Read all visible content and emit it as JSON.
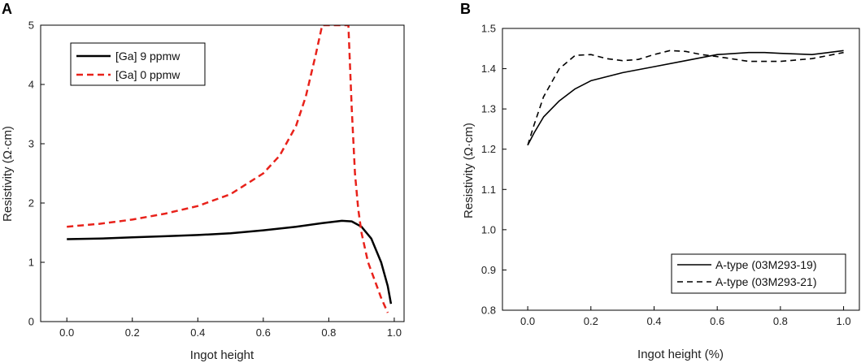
{
  "chart_data": [
    {
      "panel_label": "A",
      "type": "line",
      "title": "",
      "xlabel": "Ingot height",
      "ylabel": "Resistivity (Ω·cm)",
      "xlim": [
        -0.08,
        1.03
      ],
      "ylim": [
        0,
        5
      ],
      "xticks": [
        0.0,
        0.2,
        0.4,
        0.6,
        0.8,
        1.0
      ],
      "xtick_labels": [
        "0.0",
        "0.2",
        "0.4",
        "0.6",
        "0.8",
        "1.0"
      ],
      "yticks": [
        0,
        1,
        2,
        3,
        4,
        5
      ],
      "ytick_labels": [
        "0",
        "1",
        "2",
        "3",
        "4",
        "5"
      ],
      "grid": false,
      "legend_position": "top-left",
      "series": [
        {
          "name": "[Ga] 9 ppmw",
          "color": "#000000",
          "dash": "solid",
          "x": [
            0.0,
            0.1,
            0.2,
            0.3,
            0.4,
            0.5,
            0.6,
            0.7,
            0.78,
            0.84,
            0.87,
            0.9,
            0.93,
            0.96,
            0.98,
            0.99
          ],
          "y": [
            1.39,
            1.4,
            1.42,
            1.44,
            1.46,
            1.49,
            1.54,
            1.6,
            1.66,
            1.7,
            1.69,
            1.6,
            1.4,
            1.0,
            0.6,
            0.3
          ]
        },
        {
          "name": "[Ga] 0 ppmw",
          "color": "#e8221b",
          "dash": "dashed",
          "x": [
            0.0,
            0.1,
            0.2,
            0.3,
            0.4,
            0.5,
            0.6,
            0.65,
            0.7,
            0.73,
            0.76,
            0.78,
            0.86,
            0.87,
            0.88,
            0.89,
            0.9,
            0.92,
            0.94,
            0.96,
            0.98
          ],
          "y": [
            1.6,
            1.65,
            1.72,
            1.82,
            1.95,
            2.15,
            2.5,
            2.8,
            3.3,
            3.8,
            4.5,
            5.0,
            5.0,
            3.6,
            2.5,
            1.9,
            1.5,
            1.0,
            0.7,
            0.4,
            0.15
          ]
        }
      ]
    },
    {
      "panel_label": "B",
      "type": "line",
      "title": "",
      "xlabel": "Ingot height (%)",
      "ylabel": "Resistivity (Ω·cm)",
      "xlim": [
        -0.08,
        1.05
      ],
      "ylim": [
        0.8,
        1.5
      ],
      "xticks": [
        0.0,
        0.2,
        0.4,
        0.6,
        0.8,
        1.0
      ],
      "xtick_labels": [
        "0.0",
        "0.2",
        "0.4",
        "0.6",
        "0.8",
        "1.0"
      ],
      "yticks": [
        0.8,
        0.9,
        1.0,
        1.1,
        1.2,
        1.3,
        1.4,
        1.5
      ],
      "ytick_labels": [
        "0.8",
        "0.9",
        "1.0",
        "1.1",
        "1.2",
        "1.3",
        "1.4",
        "1.5"
      ],
      "grid": false,
      "legend_position": "bottom-right",
      "series": [
        {
          "name": "A-type (03M293-19)",
          "color": "#000000",
          "dash": "solid",
          "x": [
            0.0,
            0.02,
            0.05,
            0.1,
            0.15,
            0.2,
            0.3,
            0.4,
            0.5,
            0.6,
            0.7,
            0.75,
            0.8,
            0.9,
            1.0
          ],
          "y": [
            1.21,
            1.24,
            1.28,
            1.32,
            1.35,
            1.37,
            1.39,
            1.405,
            1.42,
            1.435,
            1.44,
            1.44,
            1.438,
            1.435,
            1.445
          ]
        },
        {
          "name": "A-type (03M293-21)",
          "color": "#000000",
          "dash": "dashed",
          "x": [
            0.0,
            0.02,
            0.05,
            0.1,
            0.15,
            0.2,
            0.25,
            0.3,
            0.35,
            0.4,
            0.45,
            0.5,
            0.55,
            0.6,
            0.7,
            0.8,
            0.9,
            1.0
          ],
          "y": [
            1.21,
            1.26,
            1.33,
            1.4,
            1.433,
            1.435,
            1.425,
            1.42,
            1.423,
            1.435,
            1.445,
            1.443,
            1.435,
            1.43,
            1.418,
            1.418,
            1.425,
            1.44
          ]
        }
      ]
    }
  ]
}
